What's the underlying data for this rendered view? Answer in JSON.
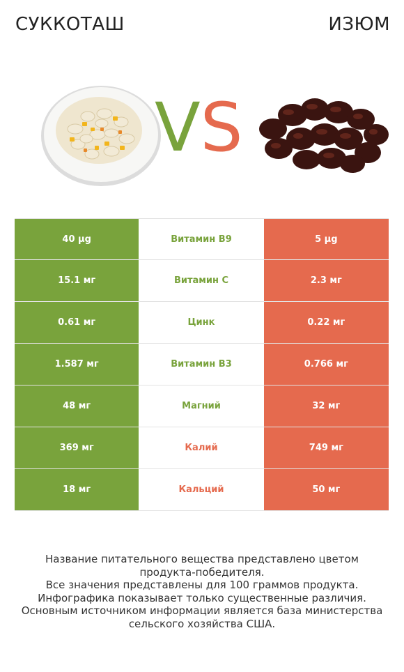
{
  "header": {
    "left_title": "СУККОТАШ",
    "right_title": "ИЗЮМ"
  },
  "vs": {
    "v": "V",
    "s": "S"
  },
  "colors": {
    "winner_left": "#79a33c",
    "winner_right": "#e56a4e"
  },
  "rows": [
    {
      "left": "40 µg",
      "nutrient": "Витамин B9",
      "right": "5 µg",
      "winner": "left"
    },
    {
      "left": "15.1 мг",
      "nutrient": "Витамин C",
      "right": "2.3 мг",
      "winner": "left"
    },
    {
      "left": "0.61 мг",
      "nutrient": "Цинк",
      "right": "0.22 мг",
      "winner": "left"
    },
    {
      "left": "1.587 мг",
      "nutrient": "Витамин B3",
      "right": "0.766 мг",
      "winner": "left"
    },
    {
      "left": "48 мг",
      "nutrient": "Магний",
      "right": "32 мг",
      "winner": "left"
    },
    {
      "left": "369 мг",
      "nutrient": "Калий",
      "right": "749 мг",
      "winner": "right"
    },
    {
      "left": "18 мг",
      "nutrient": "Кальций",
      "right": "50 мг",
      "winner": "right"
    }
  ],
  "footer": {
    "line1": "Название питательного вещества представлено цветом",
    "line2": "продукта-победителя.",
    "line3": "Все значения представлены для 100 граммов продукта.",
    "line4": "Инфографика показывает только существенные различия.",
    "line5": "Основным источником информации является база министерства",
    "line6": "сельского хозяйства США."
  }
}
